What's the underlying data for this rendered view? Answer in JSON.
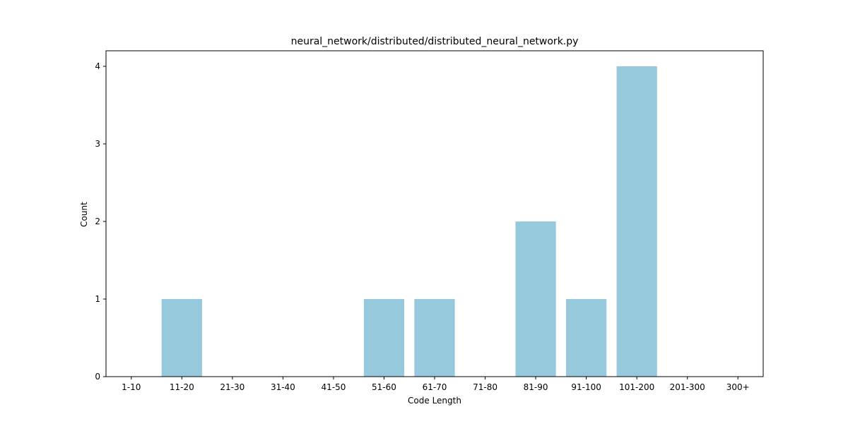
{
  "chart_data": {
    "type": "bar",
    "title": "neural_network/distributed/distributed_neural_network.py",
    "xlabel": "Code Length",
    "ylabel": "Count",
    "categories": [
      "1-10",
      "11-20",
      "21-30",
      "31-40",
      "41-50",
      "51-60",
      "61-70",
      "71-80",
      "81-90",
      "91-100",
      "101-200",
      "201-300",
      "300+"
    ],
    "values": [
      0,
      1,
      0,
      0,
      0,
      1,
      1,
      0,
      2,
      1,
      4,
      0,
      0
    ],
    "ylim": [
      0,
      4.2
    ],
    "yticks": [
      0,
      1,
      2,
      3,
      4
    ],
    "grid": false,
    "bar_color": "#96c9dc"
  }
}
